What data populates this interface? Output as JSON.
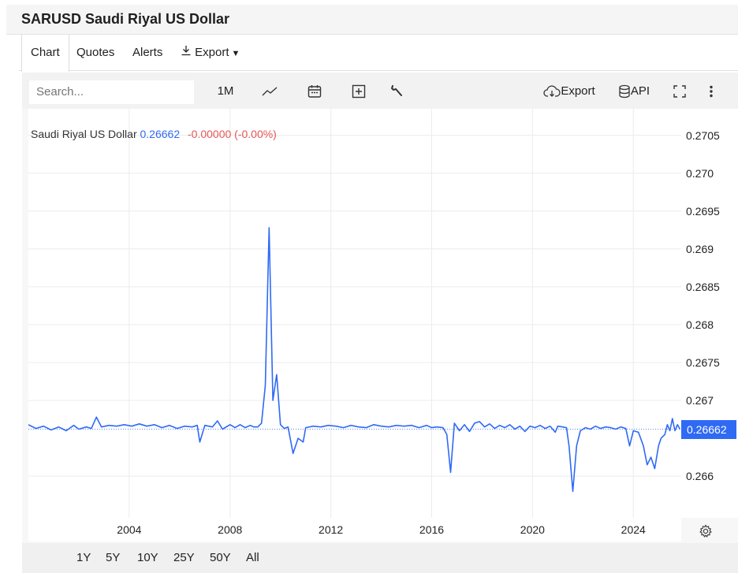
{
  "header": {
    "title": "SARUSD Saudi Riyal US Dollar"
  },
  "tabs": [
    {
      "label": "Chart"
    },
    {
      "label": "Quotes"
    },
    {
      "label": "Alerts"
    },
    {
      "label": "Export"
    }
  ],
  "toolbar": {
    "search_placeholder": "Search...",
    "interval": "1M",
    "export_label": "Export",
    "api_label": "API"
  },
  "legend": {
    "name": "Saudi Riyal US Dollar",
    "value": "0.26662",
    "change": "-0.00000 (-0.00%)"
  },
  "last_price_tag": "0.26662",
  "ranges": [
    "1Y",
    "5Y",
    "10Y",
    "25Y",
    "50Y",
    "All"
  ],
  "colors": {
    "line": "#2f6af5",
    "change": "#e45656",
    "price_tag": "#2f6af5"
  },
  "chart_data": {
    "type": "line",
    "title": "Saudi Riyal US Dollar",
    "x_ticks": [
      "2004",
      "2008",
      "2012",
      "2016",
      "2020",
      "2024"
    ],
    "x_tick_values": [
      2004,
      2008,
      2012,
      2016,
      2020,
      2024
    ],
    "y_ticks": [
      "0.2705",
      "0.270",
      "0.2695",
      "0.269",
      "0.2685",
      "0.268",
      "0.2675",
      "0.267",
      "0.266"
    ],
    "y_tick_values": [
      0.2705,
      0.27,
      0.2695,
      0.269,
      0.2685,
      0.268,
      0.2675,
      0.267,
      0.266
    ],
    "xlim": [
      2000.0,
      2025.9
    ],
    "ylim": [
      0.26545,
      0.27085
    ],
    "last_value": 0.26662,
    "grid": true,
    "series": [
      {
        "values": [
          [
            2000.0,
            0.26668
          ],
          [
            2000.3,
            0.26663
          ],
          [
            2000.6,
            0.26666
          ],
          [
            2000.9,
            0.26661
          ],
          [
            2001.2,
            0.26665
          ],
          [
            2001.5,
            0.2666
          ],
          [
            2001.8,
            0.26667
          ],
          [
            2002.0,
            0.26662
          ],
          [
            2002.3,
            0.26665
          ],
          [
            2002.5,
            0.26663
          ],
          [
            2002.7,
            0.26678
          ],
          [
            2002.9,
            0.26665
          ],
          [
            2003.2,
            0.26667
          ],
          [
            2003.5,
            0.26666
          ],
          [
            2003.8,
            0.26668
          ],
          [
            2004.1,
            0.26666
          ],
          [
            2004.4,
            0.26669
          ],
          [
            2004.7,
            0.26666
          ],
          [
            2005.0,
            0.26668
          ],
          [
            2005.3,
            0.26664
          ],
          [
            2005.6,
            0.26667
          ],
          [
            2005.9,
            0.26663
          ],
          [
            2006.2,
            0.26666
          ],
          [
            2006.5,
            0.26665
          ],
          [
            2006.7,
            0.26667
          ],
          [
            2006.8,
            0.26645
          ],
          [
            2007.0,
            0.26667
          ],
          [
            2007.3,
            0.26665
          ],
          [
            2007.5,
            0.26673
          ],
          [
            2007.7,
            0.26662
          ],
          [
            2008.0,
            0.26668
          ],
          [
            2008.2,
            0.26664
          ],
          [
            2008.4,
            0.26668
          ],
          [
            2008.6,
            0.26664
          ],
          [
            2008.8,
            0.26667
          ],
          [
            2008.95,
            0.26665
          ],
          [
            2009.1,
            0.26665
          ],
          [
            2009.25,
            0.2667
          ],
          [
            2009.4,
            0.2672
          ],
          [
            2009.55,
            0.26928
          ],
          [
            2009.7,
            0.267
          ],
          [
            2009.85,
            0.26734
          ],
          [
            2010.0,
            0.26668
          ],
          [
            2010.15,
            0.26663
          ],
          [
            2010.3,
            0.26665
          ],
          [
            2010.5,
            0.2663
          ],
          [
            2010.7,
            0.2665
          ],
          [
            2010.9,
            0.26645
          ],
          [
            2011.0,
            0.26664
          ],
          [
            2011.3,
            0.26666
          ],
          [
            2011.6,
            0.26665
          ],
          [
            2011.9,
            0.26667
          ],
          [
            2012.2,
            0.26666
          ],
          [
            2012.5,
            0.26664
          ],
          [
            2012.8,
            0.26667
          ],
          [
            2013.1,
            0.26665
          ],
          [
            2013.4,
            0.26664
          ],
          [
            2013.7,
            0.26668
          ],
          [
            2014.0,
            0.26666
          ],
          [
            2014.3,
            0.26665
          ],
          [
            2014.6,
            0.26667
          ],
          [
            2014.9,
            0.26666
          ],
          [
            2015.2,
            0.26667
          ],
          [
            2015.5,
            0.26664
          ],
          [
            2015.8,
            0.26667
          ],
          [
            2016.0,
            0.26664
          ],
          [
            2016.2,
            0.26665
          ],
          [
            2016.45,
            0.26664
          ],
          [
            2016.6,
            0.26655
          ],
          [
            2016.75,
            0.26605
          ],
          [
            2016.9,
            0.2667
          ],
          [
            2017.1,
            0.2666
          ],
          [
            2017.3,
            0.26668
          ],
          [
            2017.5,
            0.26659
          ],
          [
            2017.7,
            0.2667
          ],
          [
            2017.9,
            0.26672
          ],
          [
            2018.1,
            0.26665
          ],
          [
            2018.3,
            0.26669
          ],
          [
            2018.5,
            0.26663
          ],
          [
            2018.7,
            0.26667
          ],
          [
            2018.9,
            0.26664
          ],
          [
            2019.1,
            0.26668
          ],
          [
            2019.3,
            0.26662
          ],
          [
            2019.5,
            0.26666
          ],
          [
            2019.7,
            0.26659
          ],
          [
            2019.9,
            0.26666
          ],
          [
            2020.1,
            0.26664
          ],
          [
            2020.3,
            0.26667
          ],
          [
            2020.5,
            0.26663
          ],
          [
            2020.7,
            0.26666
          ],
          [
            2020.9,
            0.26658
          ],
          [
            2021.0,
            0.26666
          ],
          [
            2021.2,
            0.26665
          ],
          [
            2021.35,
            0.26664
          ],
          [
            2021.45,
            0.2664
          ],
          [
            2021.6,
            0.2658
          ],
          [
            2021.75,
            0.2664
          ],
          [
            2021.9,
            0.2666
          ],
          [
            2022.1,
            0.26664
          ],
          [
            2022.3,
            0.26662
          ],
          [
            2022.5,
            0.26666
          ],
          [
            2022.7,
            0.26663
          ],
          [
            2022.9,
            0.26665
          ],
          [
            2023.1,
            0.26664
          ],
          [
            2023.3,
            0.26662
          ],
          [
            2023.5,
            0.26665
          ],
          [
            2023.7,
            0.26663
          ],
          [
            2023.85,
            0.2664
          ],
          [
            2024.0,
            0.2666
          ],
          [
            2024.2,
            0.26658
          ],
          [
            2024.4,
            0.2664
          ],
          [
            2024.55,
            0.26615
          ],
          [
            2024.7,
            0.26625
          ],
          [
            2024.85,
            0.2661
          ],
          [
            2025.0,
            0.2664
          ],
          [
            2025.1,
            0.2665
          ],
          [
            2025.25,
            0.26655
          ],
          [
            2025.35,
            0.26668
          ],
          [
            2025.45,
            0.2666
          ],
          [
            2025.55,
            0.26676
          ],
          [
            2025.65,
            0.2666
          ],
          [
            2025.75,
            0.26668
          ],
          [
            2025.85,
            0.26662
          ]
        ]
      }
    ]
  }
}
